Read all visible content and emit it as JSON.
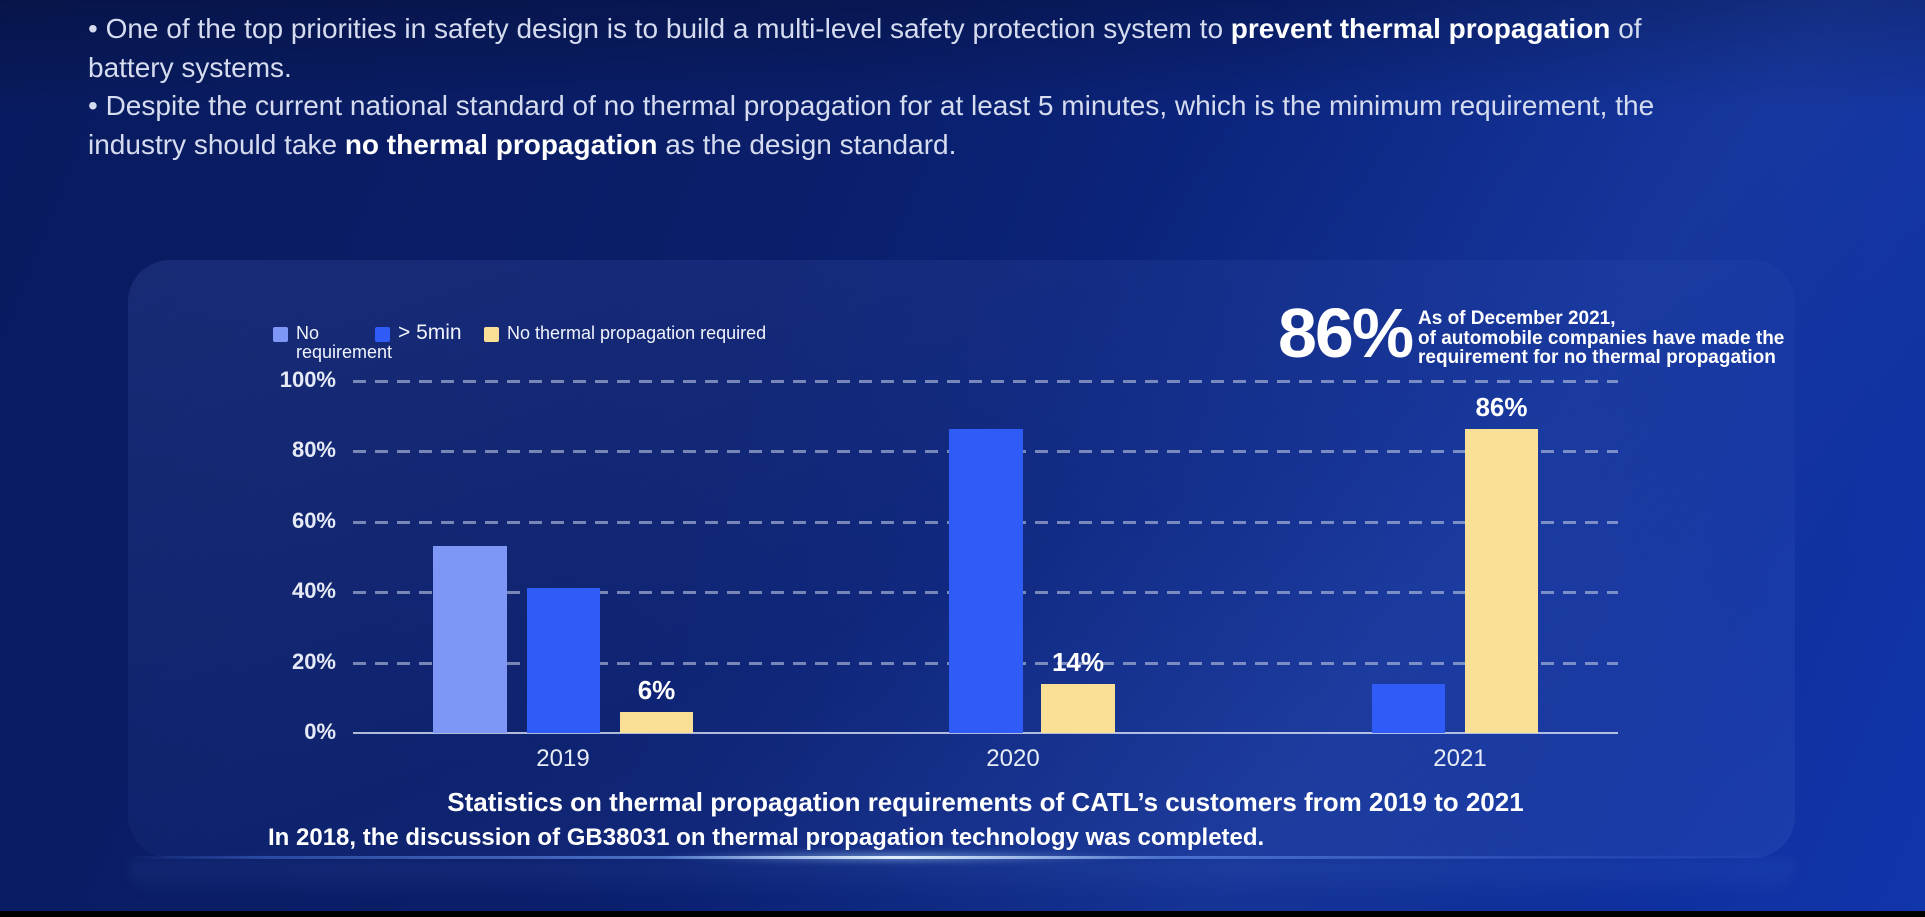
{
  "intro": {
    "b1_pre": "• One of the top priorities in safety design is to build a multi-level safety protection system to ",
    "b1_bold": "prevent thermal propagation",
    "b1_post": " of battery systems.",
    "b2_pre": "• Despite the current national standard of no thermal propagation for at least 5 minutes, which is the minimum requirement, the industry should take ",
    "b2_bold": "no thermal propagation",
    "b2_post": " as the design standard."
  },
  "callout": {
    "value": "86%",
    "line1": "As of December 2021,",
    "line2": "of automobile companies have made the",
    "line3": "requirement for no thermal propagation"
  },
  "footer_note": "In 2018, the discussion of GB38031 on thermal propagation technology was completed.",
  "colors": {
    "background_top_left": "#091b5f",
    "background_bottom_right": "#1135ab",
    "bar_no_requirement": "#7e96f6",
    "bar_gt_5min": "#2f5cf6",
    "bar_no_thermal_propagation": "#fadf96",
    "gridline": "#bcc6e2",
    "text": "#ffffff"
  },
  "chart_data": {
    "type": "bar",
    "title": "Statistics on thermal propagation requirements of CATL’s customers from 2019 to 2021",
    "categories": [
      "2019",
      "2020",
      "2021"
    ],
    "series": [
      {
        "name": "No requirement",
        "color": "#7e96f6",
        "values": [
          53,
          null,
          null
        ]
      },
      {
        "name": "> 5min",
        "color": "#2f5cf6",
        "values": [
          41,
          86,
          14
        ]
      },
      {
        "name": "No thermal propagation required",
        "color": "#fadf96",
        "values": [
          6,
          14,
          86
        ]
      }
    ],
    "value_labels": [
      "6%",
      "14%",
      "86%"
    ],
    "yticks": [
      "100%",
      "80%",
      "60%",
      "40%",
      "20%",
      "0%"
    ],
    "ylim": [
      0,
      100
    ],
    "grid": "horizontal dashed",
    "legend_position": "top-left"
  }
}
